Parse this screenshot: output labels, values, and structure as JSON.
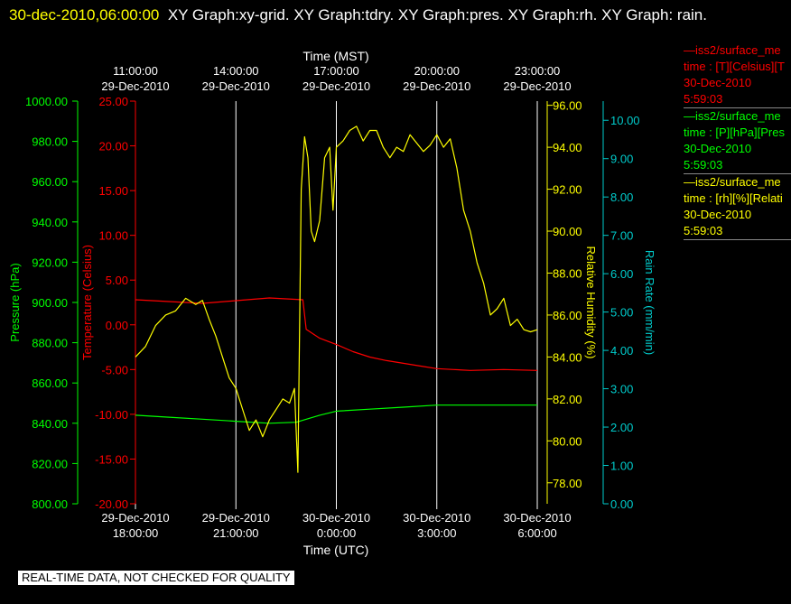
{
  "title": {
    "timestamp": "30-dec-2010,06:00:00",
    "graphs": "XY Graph:xy-grid.  XY Graph:tdry.  XY Graph:pres.  XY Graph:rh.  XY Graph: rain."
  },
  "colors": {
    "temperature": "#ff0000",
    "pressure": "#00ff00",
    "humidity": "#ffff00",
    "rain": "#00cccc",
    "grid": "#ffffff"
  },
  "qc_banner": "REAL-TIME DATA, NOT CHECKED FOR QUALITY",
  "legend": [
    {
      "line1": "iss2/surface_me",
      "line2": "time : [T][Celsius][T",
      "line3": "30-Dec-2010",
      "line4": "5:59:03",
      "color": "#ff0000"
    },
    {
      "line1": "iss2/surface_me",
      "line2": "time : [P][hPa][Pres",
      "line3": "30-Dec-2010",
      "line4": "5:59:03",
      "color": "#00ff00"
    },
    {
      "line1": "iss2/surface_me",
      "line2": "time : [rh][%][Relati",
      "line3": "30-Dec-2010",
      "line4": "5:59:03",
      "color": "#ffff00"
    }
  ],
  "chart_data": {
    "type": "line",
    "top_axis_label": "Time (MST)",
    "bottom_axis_label": "Time (UTC)",
    "x_unit": "hours since 29-Dec-2010 18:00 UTC",
    "xlim": [
      0,
      12
    ],
    "top_ticks": [
      {
        "x": 0,
        "time": "11:00:00",
        "date": "29-Dec-2010"
      },
      {
        "x": 3,
        "time": "14:00:00",
        "date": "29-Dec-2010"
      },
      {
        "x": 6,
        "time": "17:00:00",
        "date": "29-Dec-2010"
      },
      {
        "x": 9,
        "time": "20:00:00",
        "date": "29-Dec-2010"
      },
      {
        "x": 12,
        "time": "23:00:00",
        "date": "29-Dec-2010"
      }
    ],
    "bottom_ticks": [
      {
        "x": 0,
        "date": "29-Dec-2010",
        "time": "18:00:00"
      },
      {
        "x": 3,
        "date": "29-Dec-2010",
        "time": "21:00:00"
      },
      {
        "x": 6,
        "date": "30-Dec-2010",
        "time": "0:00:00"
      },
      {
        "x": 9,
        "date": "30-Dec-2010",
        "time": "3:00:00"
      },
      {
        "x": 12,
        "date": "30-Dec-2010",
        "time": "6:00:00"
      }
    ],
    "axes": {
      "pressure": {
        "label": "Pressure (hPa)",
        "ylim": [
          800,
          1000
        ],
        "ticks": [
          "800.00",
          "820.00",
          "840.00",
          "860.00",
          "880.00",
          "900.00",
          "920.00",
          "940.00",
          "960.00",
          "980.00",
          "1000.00"
        ]
      },
      "temperature": {
        "label": "Temperature (Celsius)",
        "ylim": [
          -20,
          25
        ],
        "ticks": [
          "-20.00",
          "-15.00",
          "-10.00",
          "-5.00",
          "0.00",
          "5.00",
          "10.00",
          "15.00",
          "20.00",
          "25.00"
        ]
      },
      "humidity": {
        "label": "Relative Humidity (%)",
        "ylim": [
          77,
          96.2
        ],
        "ticks": [
          "78.00",
          "80.00",
          "82.00",
          "84.00",
          "86.00",
          "88.00",
          "90.00",
          "92.00",
          "94.00",
          "96.00"
        ]
      },
      "rain": {
        "label": "Rain Rate (mm/min)",
        "ylim": [
          0,
          10.5
        ],
        "ticks": [
          "0.00",
          "1.00",
          "2.00",
          "3.00",
          "4.00",
          "5.00",
          "6.00",
          "7.00",
          "8.00",
          "9.00",
          "10.00"
        ]
      }
    },
    "series": [
      {
        "name": "iss2/surface_me time : [T][Celsius][T",
        "axis": "temperature",
        "x": [
          0,
          1,
          2,
          3,
          4,
          5,
          5.1,
          5.5,
          6,
          6.5,
          7,
          7.5,
          8,
          8.5,
          9,
          9.5,
          10,
          11,
          12
        ],
        "y": [
          2.8,
          2.6,
          2.4,
          2.7,
          3.0,
          2.8,
          -0.5,
          -1.5,
          -2.2,
          -3.0,
          -3.6,
          -4.0,
          -4.3,
          -4.6,
          -4.9,
          -5.0,
          -5.1,
          -5.0,
          -5.1
        ]
      },
      {
        "name": "iss2/surface_me time : [P][hPa][Pres",
        "axis": "pressure",
        "x": [
          0,
          1,
          2,
          3,
          4,
          4.8,
          5.5,
          6,
          7,
          8,
          9,
          10,
          11,
          12
        ],
        "y": [
          844,
          843,
          842,
          841,
          840,
          840.5,
          844,
          846,
          847,
          848,
          849,
          849,
          849,
          849
        ]
      },
      {
        "name": "iss2/surface_me time : [rh][%][Relati",
        "axis": "humidity",
        "x": [
          0,
          0.3,
          0.6,
          0.9,
          1.2,
          1.5,
          1.8,
          2.0,
          2.2,
          2.4,
          2.6,
          2.8,
          3.0,
          3.2,
          3.4,
          3.6,
          3.8,
          4.0,
          4.2,
          4.4,
          4.6,
          4.75,
          4.85,
          4.95,
          5.05,
          5.15,
          5.25,
          5.35,
          5.5,
          5.65,
          5.8,
          5.9,
          6.0,
          6.2,
          6.4,
          6.6,
          6.8,
          7.0,
          7.2,
          7.4,
          7.6,
          7.8,
          8.0,
          8.2,
          8.4,
          8.6,
          8.8,
          9.0,
          9.2,
          9.4,
          9.6,
          9.8,
          10.0,
          10.2,
          10.4,
          10.6,
          10.8,
          11.0,
          11.2,
          11.4,
          11.6,
          11.8,
          12.0
        ],
        "y": [
          84.0,
          84.5,
          85.5,
          86.0,
          86.2,
          86.8,
          86.5,
          86.7,
          85.8,
          85.0,
          84.0,
          83.0,
          82.5,
          81.5,
          80.5,
          81.0,
          80.2,
          81.0,
          81.5,
          82.0,
          81.8,
          82.5,
          78.5,
          92.0,
          94.5,
          93.5,
          90.0,
          89.5,
          90.5,
          93.5,
          94.0,
          91.0,
          94.0,
          94.3,
          94.8,
          95.0,
          94.3,
          94.8,
          94.8,
          94.0,
          93.5,
          94.0,
          93.8,
          94.6,
          94.2,
          93.8,
          94.1,
          94.6,
          94.0,
          94.4,
          93.0,
          91.0,
          90.0,
          88.5,
          87.5,
          86.0,
          86.3,
          86.8,
          85.5,
          85.8,
          85.3,
          85.2,
          85.3
        ]
      }
    ]
  }
}
